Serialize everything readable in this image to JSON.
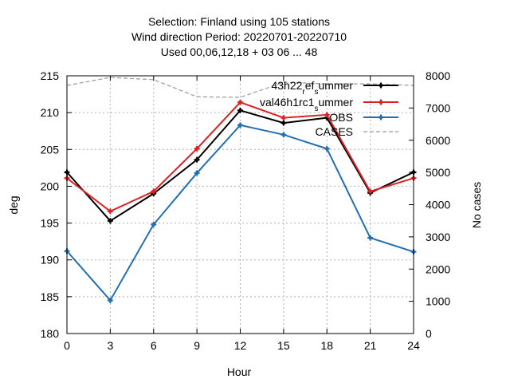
{
  "chart_data": {
    "type": "line",
    "title_lines": [
      "Selection: Finland using   105 stations",
      "Wind direction   Period: 20220701-20220710",
      "Used  00,06,12,18 + 03 06 ... 48"
    ],
    "xlabel": "Hour",
    "ylabel": "deg",
    "y2label": "No cases",
    "xlim": [
      0,
      24
    ],
    "ylim": [
      180,
      215
    ],
    "y2lim": [
      0,
      8000
    ],
    "x_ticks": [
      0,
      3,
      6,
      9,
      12,
      15,
      18,
      21,
      24
    ],
    "y_ticks": [
      180,
      185,
      190,
      195,
      200,
      205,
      210,
      215
    ],
    "y2_ticks": [
      0,
      1000,
      2000,
      3000,
      4000,
      5000,
      6000,
      7000,
      8000
    ],
    "grid": true,
    "legend_position": "top-right",
    "x": [
      0,
      3,
      6,
      9,
      12,
      15,
      18,
      21,
      24
    ],
    "series": [
      {
        "name": "43h22_ref_summer",
        "legend_parts": [
          {
            "text": "43h22",
            "shift": "none"
          },
          {
            "text": "r",
            "shift": "sub"
          },
          {
            "text": "ef",
            "shift": "none"
          },
          {
            "text": "s",
            "shift": "sub"
          },
          {
            "text": "ummer",
            "shift": "none"
          }
        ],
        "color": "#000000",
        "axis": "y",
        "marker": true,
        "dashed": false,
        "values": [
          201.9,
          195.3,
          199.0,
          203.6,
          210.3,
          208.6,
          209.3,
          199.1,
          201.9
        ]
      },
      {
        "name": "val46h1rc1_summer",
        "legend_parts": [
          {
            "text": "val46h1rc1",
            "shift": "none"
          },
          {
            "text": "s",
            "shift": "sub"
          },
          {
            "text": "ummer",
            "shift": "none"
          }
        ],
        "color": "#dd2222",
        "axis": "y",
        "marker": true,
        "dashed": false,
        "values": [
          201.1,
          196.6,
          199.3,
          205.1,
          211.4,
          209.3,
          209.7,
          199.3,
          201.1
        ]
      },
      {
        "name": "OBS",
        "legend_parts": [
          {
            "text": "OBS",
            "shift": "none"
          }
        ],
        "color": "#1f6fb5",
        "axis": "y",
        "marker": true,
        "dashed": false,
        "values": [
          191.2,
          184.5,
          194.8,
          201.8,
          208.3,
          207.0,
          205.1,
          193.0,
          191.1
        ]
      },
      {
        "name": "CASES",
        "legend_parts": [
          {
            "text": "CASES",
            "shift": "none"
          }
        ],
        "color": "#999999",
        "axis": "y2",
        "marker": false,
        "dashed": true,
        "values": [
          7700,
          7950,
          7880,
          7350,
          7330,
          7800,
          7750,
          7750,
          7700
        ]
      }
    ]
  }
}
